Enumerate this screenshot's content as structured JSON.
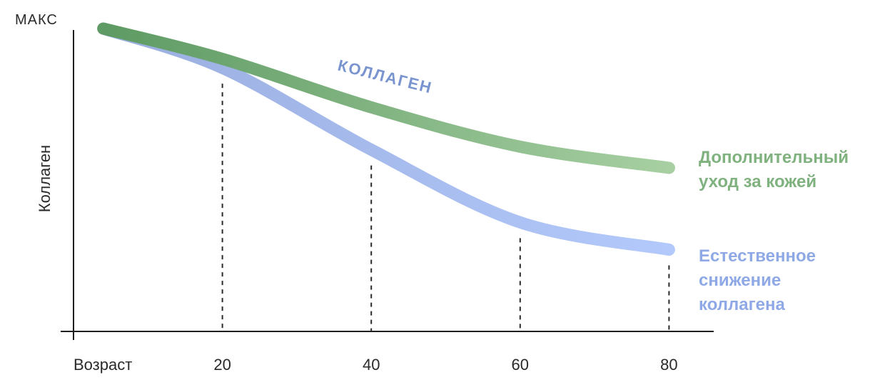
{
  "chart_data": {
    "type": "line",
    "ymax_label": "МАКС",
    "xlabel": "Возраст",
    "ylabel": "Коллаген",
    "x_ticks": [
      20,
      40,
      60,
      80
    ],
    "xlim": [
      0,
      85
    ],
    "ylim": [
      0,
      100
    ],
    "grid": false,
    "curve_label": "КОЛЛАГЕН",
    "series": [
      {
        "name": "Дополнительный уход за кожей",
        "name_lines": [
          "Дополнительный",
          "уход за кожей"
        ],
        "color": "#7fb27f",
        "color_start": "#5e9a63",
        "color_end": "#a7cfa2",
        "x": [
          4,
          20,
          40,
          60,
          80
        ],
        "y": [
          100,
          90,
          74,
          61,
          54
        ]
      },
      {
        "name": "Естественное снижение коллагена",
        "name_lines": [
          "Естественное",
          "снижение",
          "коллагена"
        ],
        "color": "#8fa9e6",
        "color_start": "#9aaedf",
        "color_end": "#b3c9fb",
        "x": [
          4,
          20,
          40,
          60,
          80
        ],
        "y": [
          100,
          87,
          60,
          36,
          27
        ]
      }
    ]
  }
}
